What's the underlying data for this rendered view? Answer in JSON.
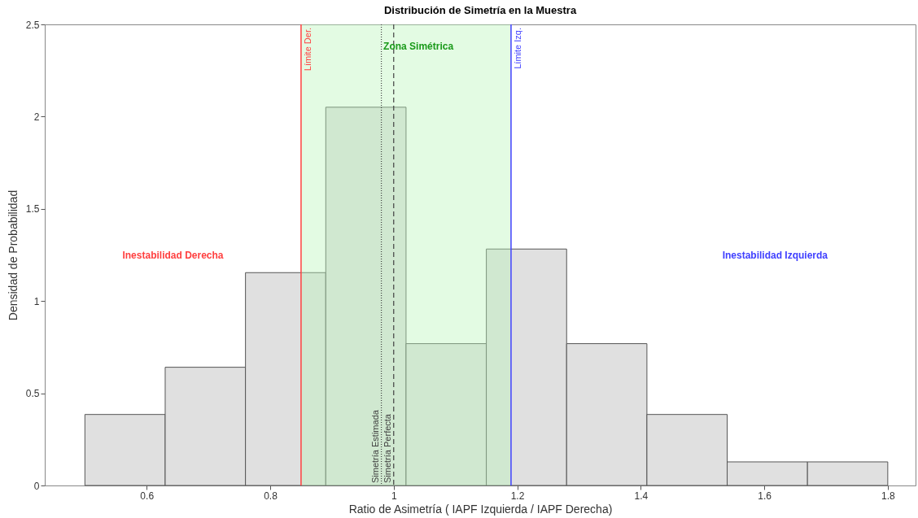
{
  "chart_data": {
    "type": "histogram",
    "title": "Distribución de Simetría en la Muestra",
    "xlabel": "Ratio de Asimetría ( IAPF Izquierda / IAPF Derecha)",
    "ylabel": "Densidad de Probabilidad",
    "bins": [
      0.5,
      0.63,
      0.76,
      0.89,
      1.02,
      1.15,
      1.28,
      1.41,
      1.54,
      1.67,
      1.8
    ],
    "values": [
      0.385,
      0.641,
      1.154,
      2.051,
      0.769,
      1.282,
      0.769,
      0.385,
      0.128,
      0.128
    ],
    "color": "#e0e0e0",
    "xlim": [
      0.435,
      1.845
    ],
    "ylim": [
      0,
      2.5
    ],
    "xticks": [
      0.6,
      0.8,
      1,
      1.2,
      1.4,
      1.6,
      1.8
    ],
    "yticks": [
      0,
      0.5,
      1,
      1.5,
      2,
      2.5
    ],
    "grid": false,
    "bands": [
      {
        "axis": "x",
        "from": 0.85,
        "to": 1.19,
        "color": "#b8f5b8"
      }
    ],
    "ref_lines": [
      {
        "axis": "x",
        "value": 0.85,
        "label": "Límite Der.",
        "color": "#ff4040",
        "line_style": "solid"
      },
      {
        "axis": "x",
        "value": 1.19,
        "label": "Límite Izq.",
        "color": "#4040ff",
        "line_style": "solid"
      },
      {
        "axis": "x",
        "value": 0.98,
        "label": "Simetría Estimada",
        "color": "#404040",
        "line_style": "dotted"
      },
      {
        "axis": "x",
        "value": 1.0,
        "label": "Simetría Perfecta",
        "color": "#404040",
        "line_style": "dashed"
      }
    ],
    "annotations": [
      "Zona Simétrica",
      "Inestabilidad Derecha",
      "Inestabilidad Izquierda"
    ]
  }
}
